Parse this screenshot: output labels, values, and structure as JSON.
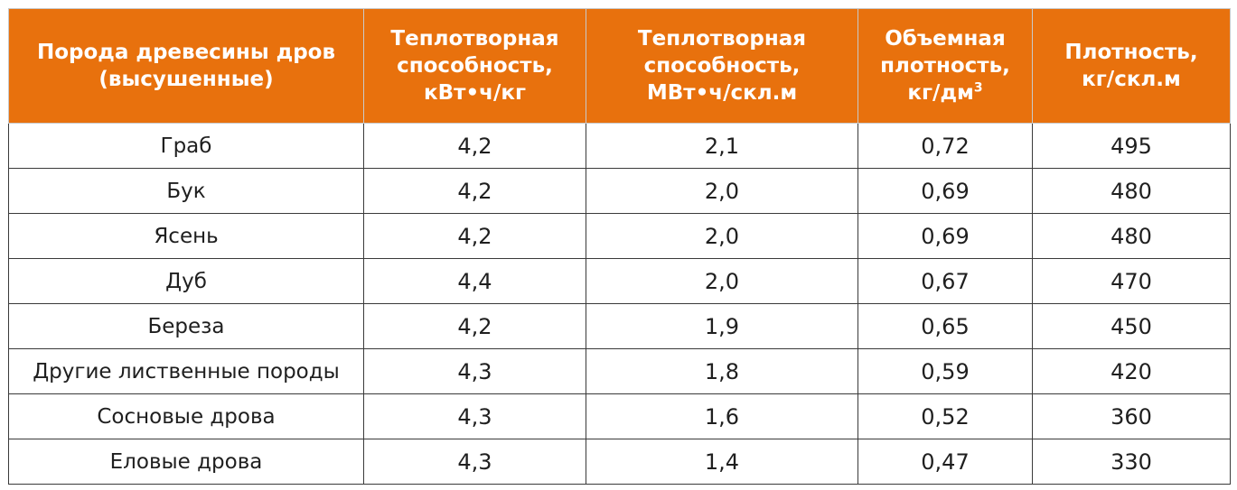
{
  "table": {
    "headers": [
      {
        "lines": [
          "Порода древесины дров",
          "(высушенные)"
        ]
      },
      {
        "lines": [
          "Теплотворная",
          "способность,",
          "кВт•ч/кг"
        ]
      },
      {
        "lines": [
          "Теплотворная",
          "способность,",
          "МВт•ч/скл.м"
        ]
      },
      {
        "lines": [
          "Объемная",
          "плотность,",
          "кг/дм"
        ],
        "sup": "3"
      },
      {
        "lines": [
          "Плотность,",
          "кг/скл.м"
        ]
      }
    ],
    "rows": [
      [
        "Граб",
        "4,2",
        "2,1",
        "0,72",
        "495"
      ],
      [
        "Бук",
        "4,2",
        "2,0",
        "0,69",
        "480"
      ],
      [
        "Ясень",
        "4,2",
        "2,0",
        "0,69",
        "480"
      ],
      [
        "Дуб",
        "4,4",
        "2,0",
        "0,67",
        "470"
      ],
      [
        "Береза",
        "4,2",
        "1,9",
        "0,65",
        "450"
      ],
      [
        "Другие лиственные породы",
        "4,3",
        "1,8",
        "0,59",
        "420"
      ],
      [
        "Сосновые дрова",
        "4,3",
        "1,6",
        "0,52",
        "360"
      ],
      [
        "Еловые дрова",
        "4,3",
        "1,4",
        "0,47",
        "330"
      ]
    ]
  },
  "colors": {
    "header_bg": "#e8710d",
    "header_text": "#ffffff",
    "cell_text": "#1f1f1f",
    "grid": "#3a3a3a"
  }
}
